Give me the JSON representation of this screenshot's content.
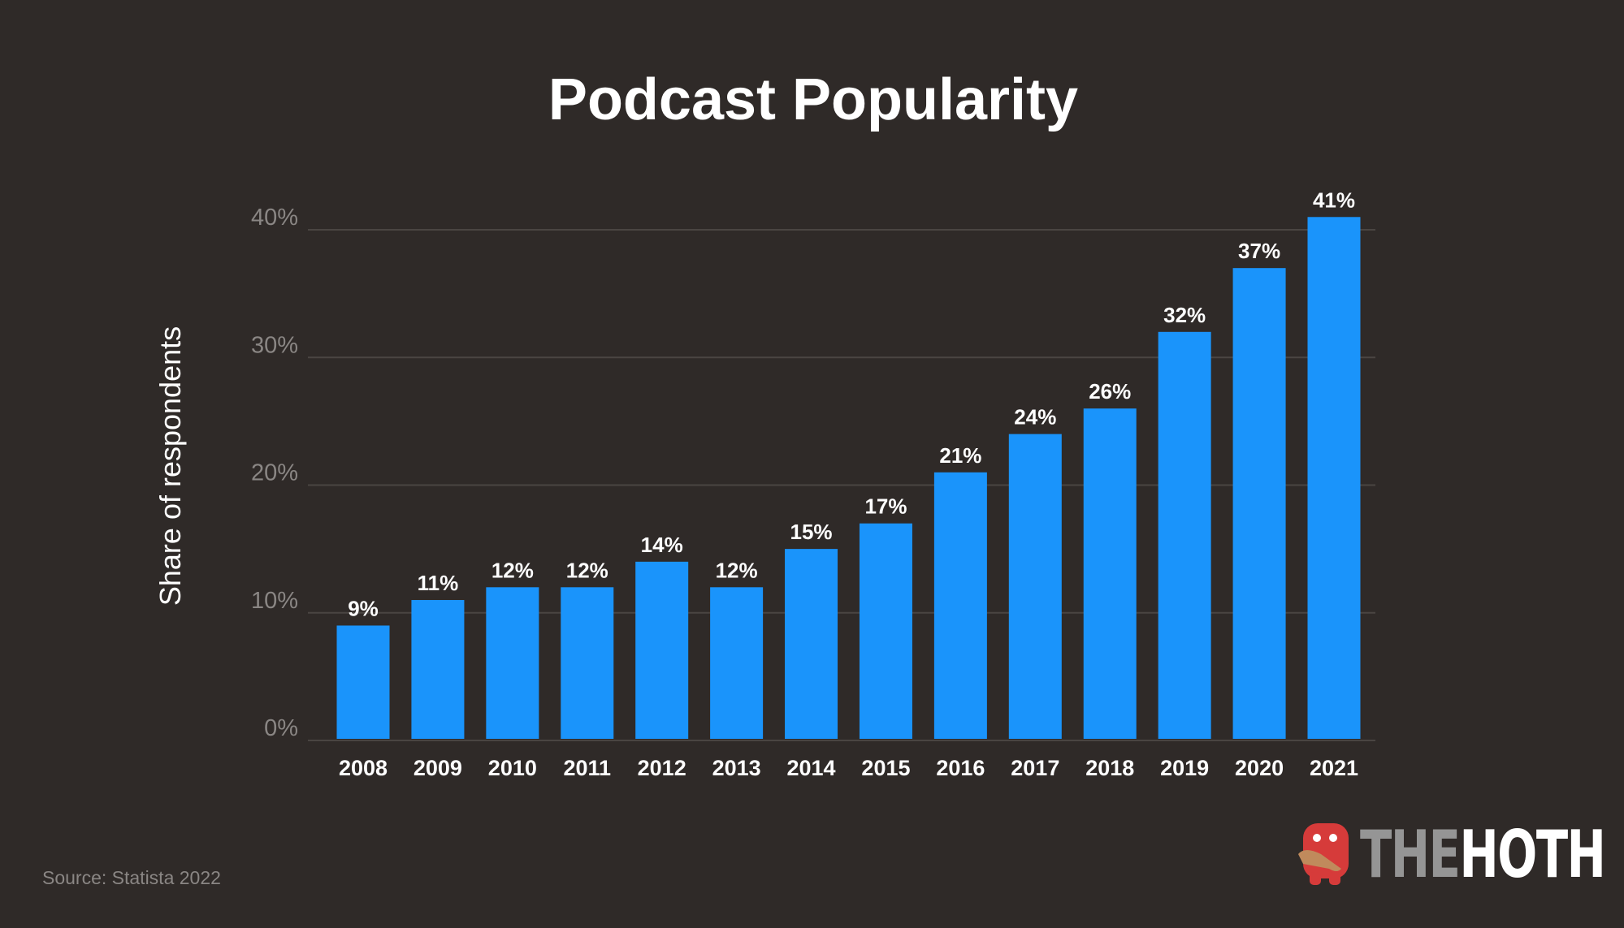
{
  "chart_data": {
    "type": "bar",
    "title": "Podcast Popularity",
    "xlabel": "",
    "ylabel": "Share of respondents",
    "categories": [
      "2008",
      "2009",
      "2010",
      "2011",
      "2012",
      "2013",
      "2014",
      "2015",
      "2016",
      "2017",
      "2018",
      "2019",
      "2020",
      "2021"
    ],
    "values": [
      9,
      11,
      12,
      12,
      14,
      12,
      15,
      17,
      21,
      24,
      26,
      32,
      37,
      41
    ],
    "data_labels": [
      "9%",
      "11%",
      "12%",
      "12%",
      "14%",
      "12%",
      "15%",
      "17%",
      "21%",
      "24%",
      "26%",
      "32%",
      "37%",
      "41%"
    ],
    "ylim": [
      0,
      40
    ],
    "yticks": [
      0,
      10,
      20,
      30,
      40
    ],
    "ytick_labels": [
      "0%",
      "10%",
      "20%",
      "30%",
      "40%"
    ],
    "grid": true,
    "colors": {
      "bar": "#1a94fb",
      "background": "#2f2a28",
      "grid": "#4a4542"
    }
  },
  "source": "Source: Statista 2022",
  "logo": {
    "the": "THE",
    "hoth": "HOTH"
  }
}
